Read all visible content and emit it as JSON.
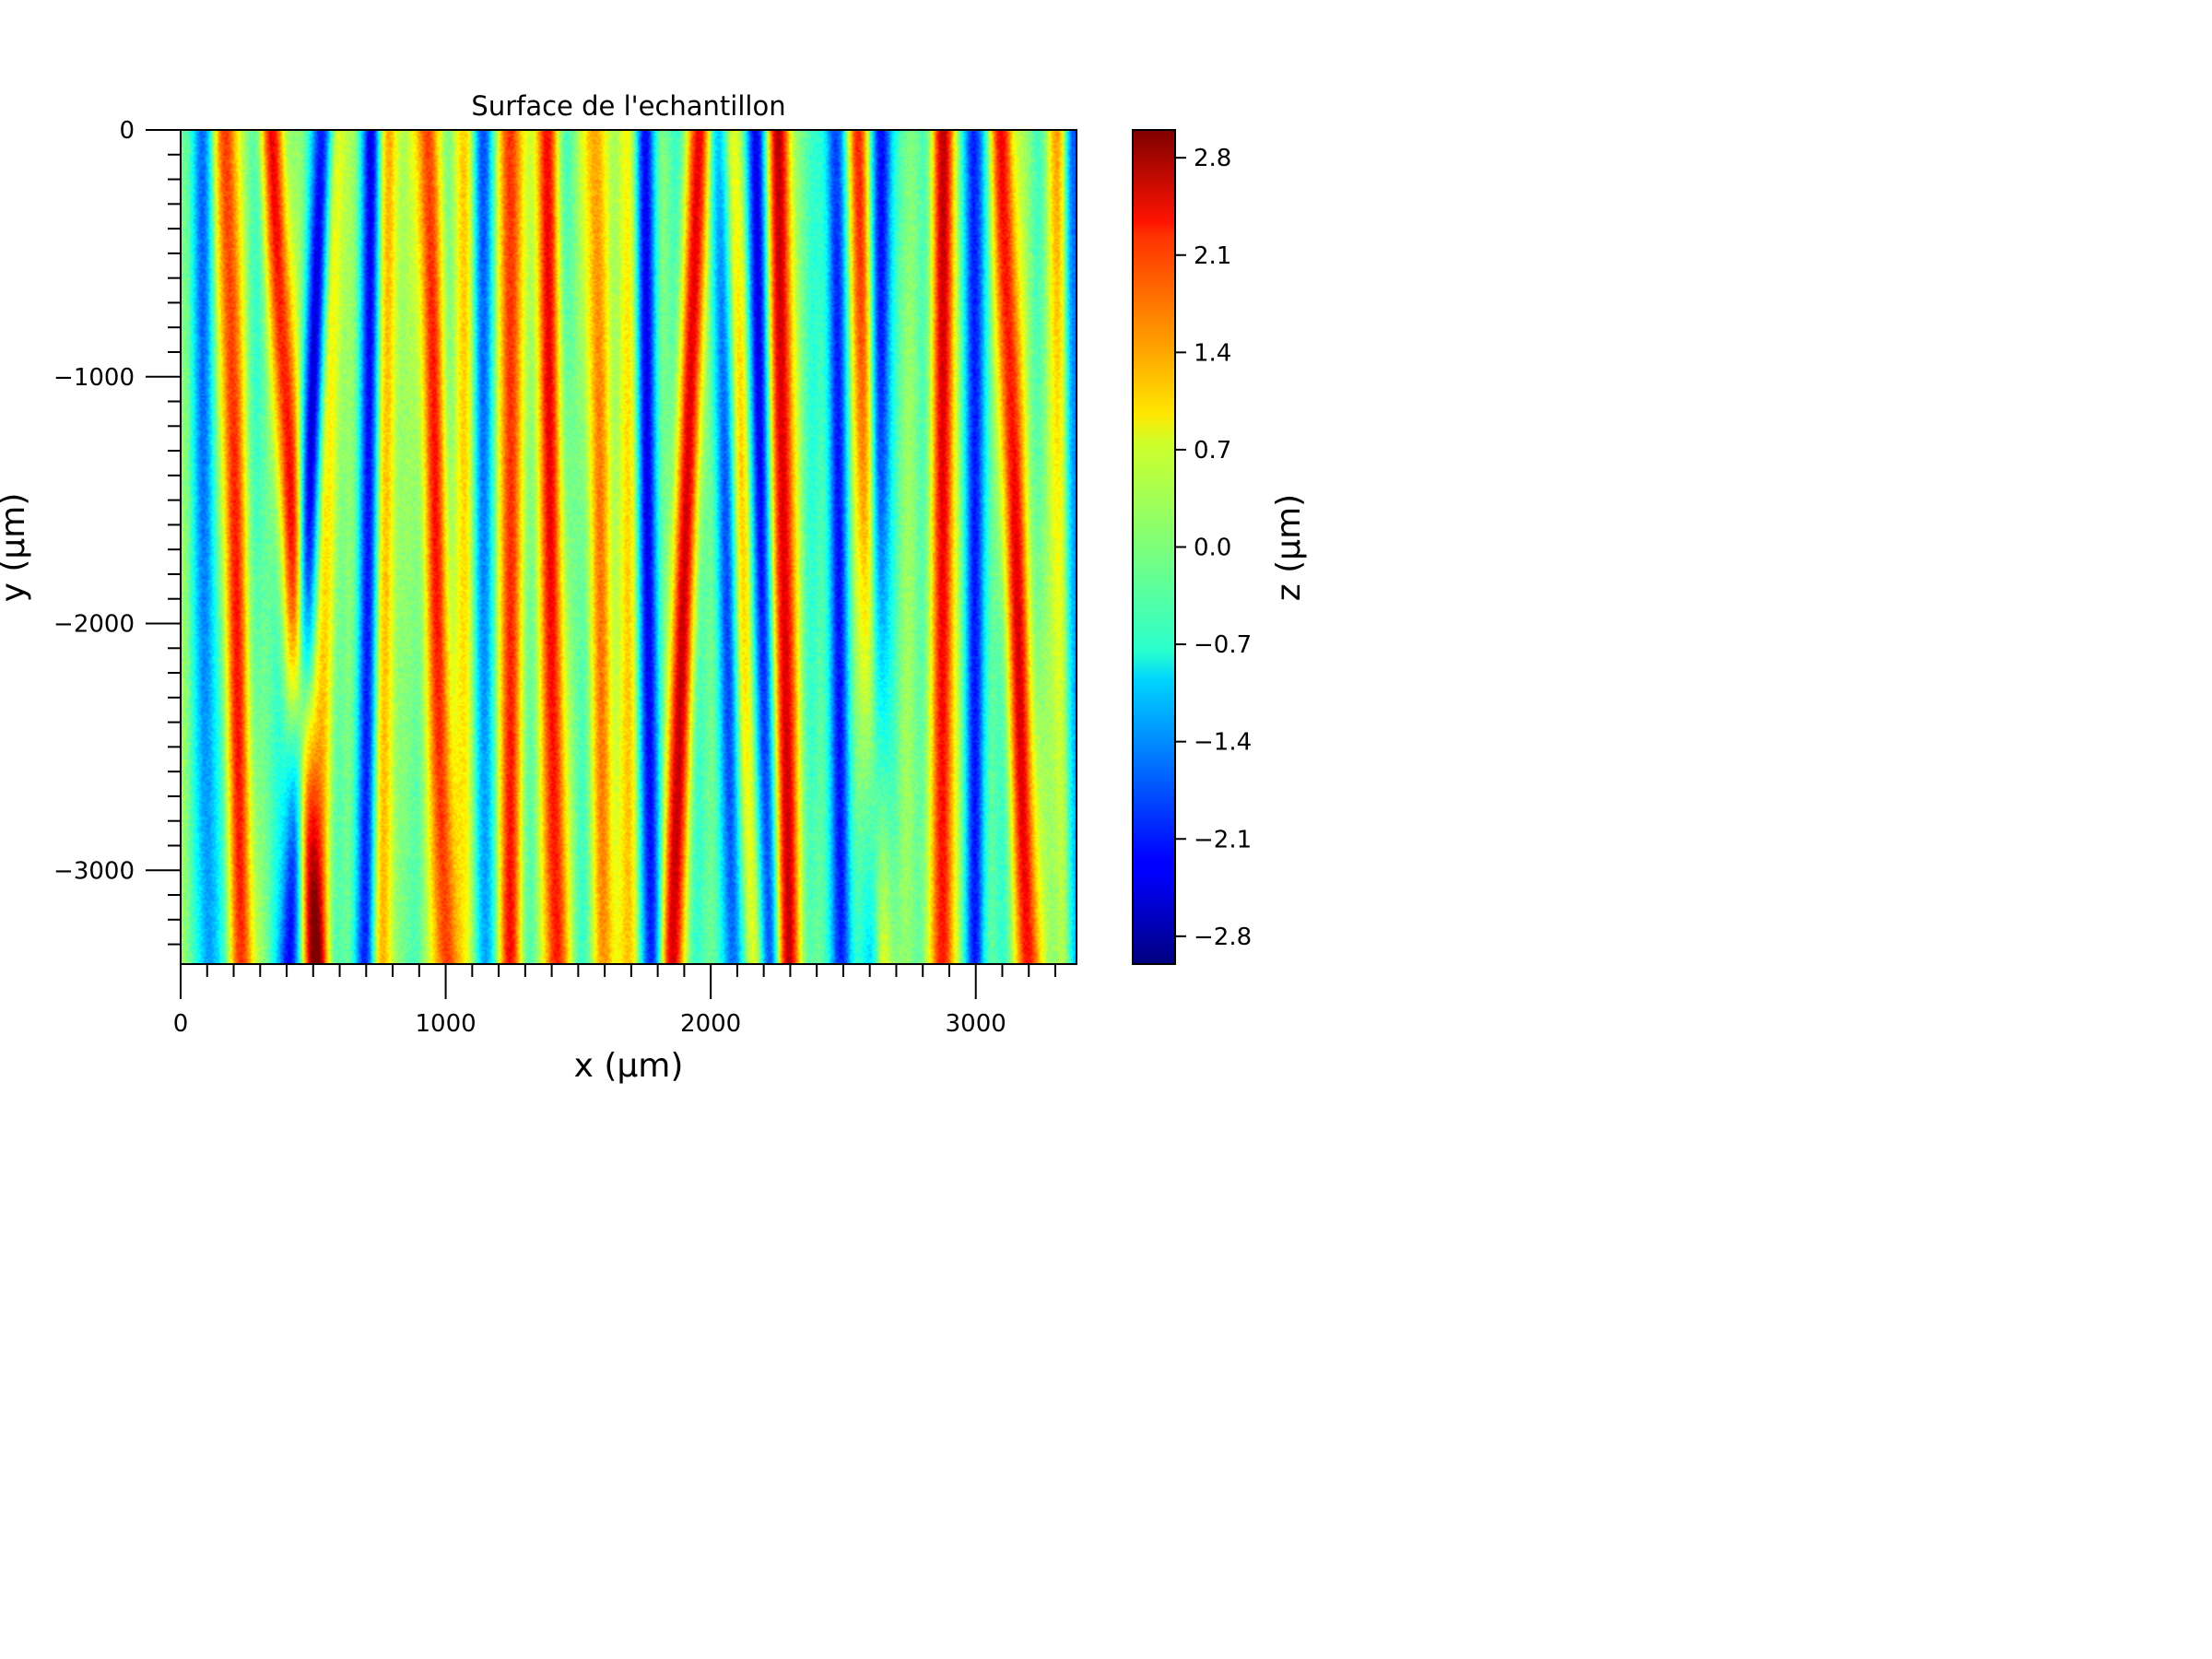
{
  "chart_data": {
    "type": "heatmap",
    "title": "Surface de l'echantillon",
    "xlabel": "x (µm)",
    "ylabel": "y (µm)",
    "xlim": [
      0,
      3380
    ],
    "ylim": [
      -3380,
      0
    ],
    "x_ticks": [
      {
        "value": 0,
        "label": "0"
      },
      {
        "value": 1000,
        "label": "1000"
      },
      {
        "value": 2000,
        "label": "2000"
      },
      {
        "value": 3000,
        "label": "3000"
      }
    ],
    "y_ticks": [
      {
        "value": 0,
        "label": "0"
      },
      {
        "value": -1000,
        "label": "−1000"
      },
      {
        "value": -2000,
        "label": "−2000"
      },
      {
        "value": -3000,
        "label": "−3000"
      }
    ],
    "colorbar": {
      "label": "z (µm)",
      "colormap": "jet",
      "range": [
        -3.0,
        3.0
      ],
      "ticks": [
        {
          "value": 2.8,
          "label": "2.8"
        },
        {
          "value": 2.1,
          "label": "2.1"
        },
        {
          "value": 1.4,
          "label": "1.4"
        },
        {
          "value": 0.7,
          "label": "0.7"
        },
        {
          "value": 0.0,
          "label": "0.0"
        },
        {
          "value": -0.7,
          "label": "−0.7"
        },
        {
          "value": -1.4,
          "label": "−1.4"
        },
        {
          "value": -2.1,
          "label": "−2.1"
        },
        {
          "value": -2.8,
          "label": "−2.8"
        }
      ]
    },
    "stripes": {
      "orientation": "vertical",
      "description_values": "approximate stripe centers along x (µm) and peak height z (µm) at top / bottom of sample",
      "ridges": [
        {
          "x_top": 170,
          "x_bottom": 230,
          "z": 2.0
        },
        {
          "x_top": 340,
          "x_bottom": 500,
          "z": 2.3
        },
        {
          "x_top": 580,
          "x_bottom": 520,
          "z": 1.2
        },
        {
          "x_top": 780,
          "x_bottom": 760,
          "z": 1.6
        },
        {
          "x_top": 930,
          "x_bottom": 1000,
          "z": 2.2
        },
        {
          "x_top": 1060,
          "x_bottom": 1080,
          "z": 1.0
        },
        {
          "x_top": 1240,
          "x_bottom": 1240,
          "z": 2.4
        },
        {
          "x_top": 1380,
          "x_bottom": 1420,
          "z": 2.3
        },
        {
          "x_top": 1560,
          "x_bottom": 1600,
          "z": 1.4
        },
        {
          "x_top": 1680,
          "x_bottom": 1700,
          "z": 1.2
        },
        {
          "x_top": 1960,
          "x_bottom": 1850,
          "z": 2.6
        },
        {
          "x_top": 2080,
          "x_bottom": 2170,
          "z": 1.3
        },
        {
          "x_top": 2260,
          "x_bottom": 2290,
          "z": 2.6
        },
        {
          "x_top": 2560,
          "x_bottom": 2640,
          "z": 2.2
        },
        {
          "x_top": 2880,
          "x_bottom": 2880,
          "z": 2.6
        },
        {
          "x_top": 3100,
          "x_bottom": 3200,
          "z": 2.4
        },
        {
          "x_top": 3320,
          "x_bottom": 3350,
          "z": 1.8
        }
      ],
      "troughs": [
        {
          "x_top": 80,
          "x_bottom": 100,
          "z": -1.2
        },
        {
          "x_top": 540,
          "x_bottom": 410,
          "z": -2.3
        },
        {
          "x_top": 720,
          "x_bottom": 700,
          "z": -2.2
        },
        {
          "x_top": 1140,
          "x_bottom": 1150,
          "z": -1.6
        },
        {
          "x_top": 1750,
          "x_bottom": 1780,
          "z": -2.2
        },
        {
          "x_top": 2030,
          "x_bottom": 2090,
          "z": -1.8
        },
        {
          "x_top": 2170,
          "x_bottom": 2220,
          "z": -2.1
        },
        {
          "x_top": 2470,
          "x_bottom": 2500,
          "z": -2.0
        },
        {
          "x_top": 2650,
          "x_bottom": 2620,
          "z": -2.3
        },
        {
          "x_top": 2990,
          "x_bottom": 3000,
          "z": -2.0
        },
        {
          "x_top": 3370,
          "x_bottom": 3370,
          "z": -2.2
        }
      ]
    }
  }
}
